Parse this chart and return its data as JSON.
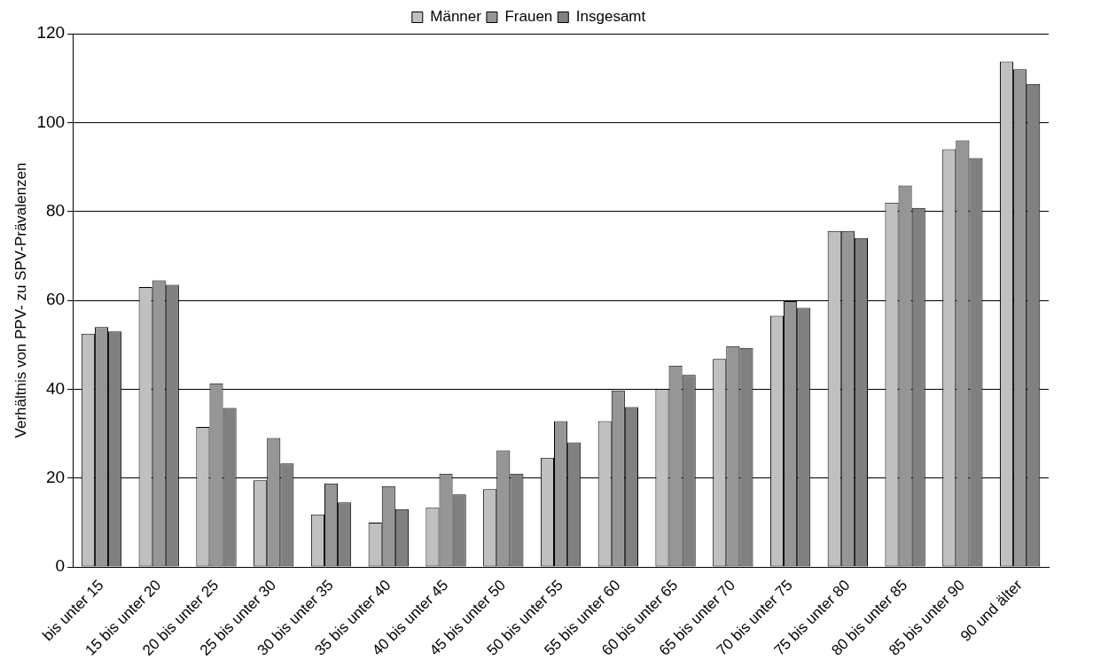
{
  "chart_data": {
    "type": "bar",
    "ylabel": "Verhältnis von PPV- zu SPV-Prävalenzen",
    "categories": [
      "bis unter 15",
      "15 bis unter 20",
      "20 bis unter 25",
      "25 bis unter 30",
      "30 bis unter 35",
      "35 bis unter 40",
      "40 bis unter 45",
      "45 bis unter 50",
      "50 bis unter 55",
      "55 bis unter 60",
      "60 bis unter 65",
      "65 bis unter 70",
      "70 bis unter 75",
      "75 bis unter 80",
      "80 bis unter 85",
      "85 bis unter 90",
      "90 und älter"
    ],
    "series": [
      {
        "name": "Männer",
        "color": "#c0c0c0",
        "values": [
          52.5,
          63,
          31.5,
          19.5,
          11.8,
          10,
          13.3,
          17.5,
          24.6,
          32.8,
          40,
          46.8,
          56.5,
          75.6,
          82,
          94,
          113.7
        ]
      },
      {
        "name": "Frauen",
        "color": "#969696",
        "values": [
          54,
          64.5,
          41.3,
          29,
          18.8,
          18.2,
          21,
          26.2,
          32.8,
          39.7,
          45.3,
          49.7,
          59.8,
          75.6,
          85.8,
          96,
          112
        ]
      },
      {
        "name": "Insgesamt",
        "color": "#808080",
        "values": [
          53,
          63.5,
          35.8,
          23.3,
          14.5,
          13,
          16.3,
          21,
          28,
          36,
          43.2,
          49.3,
          58.3,
          74,
          80.8,
          92,
          108.7
        ]
      }
    ],
    "ylim": [
      0,
      120
    ],
    "yticks": [
      0,
      20,
      40,
      60,
      80,
      100,
      120
    ],
    "grid": "y",
    "legend": "top"
  }
}
